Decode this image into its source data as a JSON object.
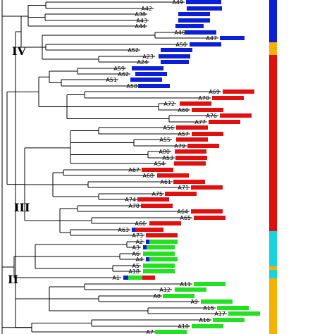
{
  "colors": {
    "blue": "#0a1fd6",
    "red": "#e01010",
    "green": "#22e022",
    "cyan": "#18d4e0",
    "orange": "#f6b200",
    "branch": "#000000"
  },
  "clades": [
    "IV",
    "III",
    "II"
  ],
  "leaves": [
    {
      "label": "A49",
      "bars": [
        [
          "blue",
          50
        ]
      ]
    },
    {
      "label": "A42",
      "bars": [
        [
          "blue",
          50
        ]
      ]
    },
    {
      "label": "A38",
      "bars": [
        [
          "blue",
          45
        ]
      ]
    },
    {
      "label": "A43",
      "bars": [
        [
          "blue",
          45
        ]
      ]
    },
    {
      "label": "A44",
      "bars": [
        [
          "blue",
          40
        ]
      ]
    },
    {
      "label": "A46",
      "bars": [
        [
          "blue",
          45
        ]
      ]
    },
    {
      "label": "A47",
      "bars": [
        [
          "blue",
          35
        ]
      ]
    },
    {
      "label": "A50",
      "bars": [
        [
          "blue",
          45
        ]
      ]
    },
    {
      "label": "A52",
      "bars": [
        [
          "blue",
          45
        ]
      ]
    },
    {
      "label": "A23",
      "bars": [
        [
          "blue",
          45
        ]
      ]
    },
    {
      "label": "A24",
      "bars": [
        [
          "blue",
          40
        ]
      ]
    },
    {
      "label": "A59",
      "bars": [
        [
          "blue",
          45
        ]
      ]
    },
    {
      "label": "A62",
      "bars": [
        [
          "blue",
          45
        ]
      ]
    },
    {
      "label": "A51",
      "bars": [
        [
          "blue",
          45
        ]
      ]
    },
    {
      "label": "A58",
      "bars": [
        [
          "blue",
          45
        ]
      ]
    },
    {
      "label": "A69",
      "bars": [
        [
          "red",
          45
        ]
      ]
    },
    {
      "label": "A70",
      "bars": [
        [
          "red",
          45
        ]
      ]
    },
    {
      "label": "A72",
      "bars": [
        [
          "red",
          45
        ]
      ]
    },
    {
      "label": "A60",
      "bars": [
        [
          "red",
          45
        ]
      ]
    },
    {
      "label": "A76",
      "bars": [
        [
          "red",
          45
        ]
      ]
    },
    {
      "label": "A77",
      "bars": [
        [
          "red",
          45
        ]
      ]
    },
    {
      "label": "A56",
      "bars": [
        [
          "red",
          45
        ]
      ]
    },
    {
      "label": "A57",
      "bars": [
        [
          "red",
          45
        ]
      ]
    },
    {
      "label": "A55",
      "bars": [
        [
          "red",
          45
        ]
      ]
    },
    {
      "label": "A79",
      "bars": [
        [
          "red",
          45
        ]
      ]
    },
    {
      "label": "A80",
      "bars": [
        [
          "red",
          45
        ]
      ]
    },
    {
      "label": "A53",
      "bars": [
        [
          "red",
          45
        ]
      ]
    },
    {
      "label": "A54",
      "bars": [
        [
          "red",
          45
        ]
      ]
    },
    {
      "label": "A67",
      "bars": [
        [
          "red",
          45
        ]
      ]
    },
    {
      "label": "A68",
      "bars": [
        [
          "red",
          45
        ]
      ]
    },
    {
      "label": "A61",
      "bars": [
        [
          "red",
          45
        ]
      ]
    },
    {
      "label": "A71",
      "bars": [
        [
          "red",
          45
        ]
      ]
    },
    {
      "label": "A75",
      "bars": [
        [
          "red",
          45
        ]
      ]
    },
    {
      "label": "A74",
      "bars": [
        [
          "red",
          45
        ]
      ]
    },
    {
      "label": "A78",
      "bars": [
        [
          "red",
          45
        ]
      ]
    },
    {
      "label": "A64",
      "bars": [
        [
          "red",
          45
        ]
      ]
    },
    {
      "label": "A65",
      "bars": [
        [
          "red",
          45
        ]
      ]
    },
    {
      "label": "A66",
      "bars": [
        [
          "red",
          45
        ]
      ]
    },
    {
      "label": "A63",
      "bars": [
        [
          "blue",
          5
        ],
        [
          "red",
          40
        ]
      ]
    },
    {
      "label": "A73",
      "bars": [
        [
          "red",
          45
        ]
      ]
    },
    {
      "label": "A2",
      "bars": [
        [
          "blue",
          5
        ],
        [
          "green",
          40
        ]
      ]
    },
    {
      "label": "A3",
      "bars": [
        [
          "blue",
          5
        ],
        [
          "green",
          40
        ]
      ]
    },
    {
      "label": "A6",
      "bars": [
        [
          "green",
          45
        ]
      ]
    },
    {
      "label": "A4",
      "bars": [
        [
          "blue",
          5
        ],
        [
          "green",
          40
        ]
      ]
    },
    {
      "label": "A5",
      "bars": [
        [
          "green",
          45
        ]
      ]
    },
    {
      "label": "A18",
      "bars": [
        [
          "green",
          45
        ]
      ]
    },
    {
      "label": "A1",
      "bars": [
        [
          "blue",
          7
        ],
        [
          "green",
          20
        ],
        [
          "red",
          18
        ]
      ]
    },
    {
      "label": "A11",
      "bars": [
        [
          "green",
          45
        ]
      ]
    },
    {
      "label": "A12",
      "bars": [
        [
          "green",
          45
        ]
      ]
    },
    {
      "label": "A8",
      "bars": [
        [
          "green",
          45
        ]
      ]
    },
    {
      "label": "A9",
      "bars": [
        [
          "green",
          45
        ]
      ]
    },
    {
      "label": "A15",
      "bars": [
        [
          "green",
          45
        ]
      ]
    },
    {
      "label": "A17",
      "bars": [
        [
          "green",
          45
        ]
      ]
    },
    {
      "label": "A16",
      "bars": [
        [
          "green",
          45
        ]
      ]
    },
    {
      "label": "A10",
      "bars": [
        [
          "green",
          45
        ]
      ]
    },
    {
      "label": "A7",
      "bars": [
        [
          "green",
          45
        ]
      ]
    }
  ],
  "stripe": [
    [
      "blue",
      60
    ],
    [
      "orange",
      18
    ],
    [
      "red",
      250
    ],
    [
      "cyan",
      50
    ],
    [
      "orange",
      5
    ],
    [
      "cyan",
      12
    ],
    [
      "orange",
      79
    ]
  ]
}
